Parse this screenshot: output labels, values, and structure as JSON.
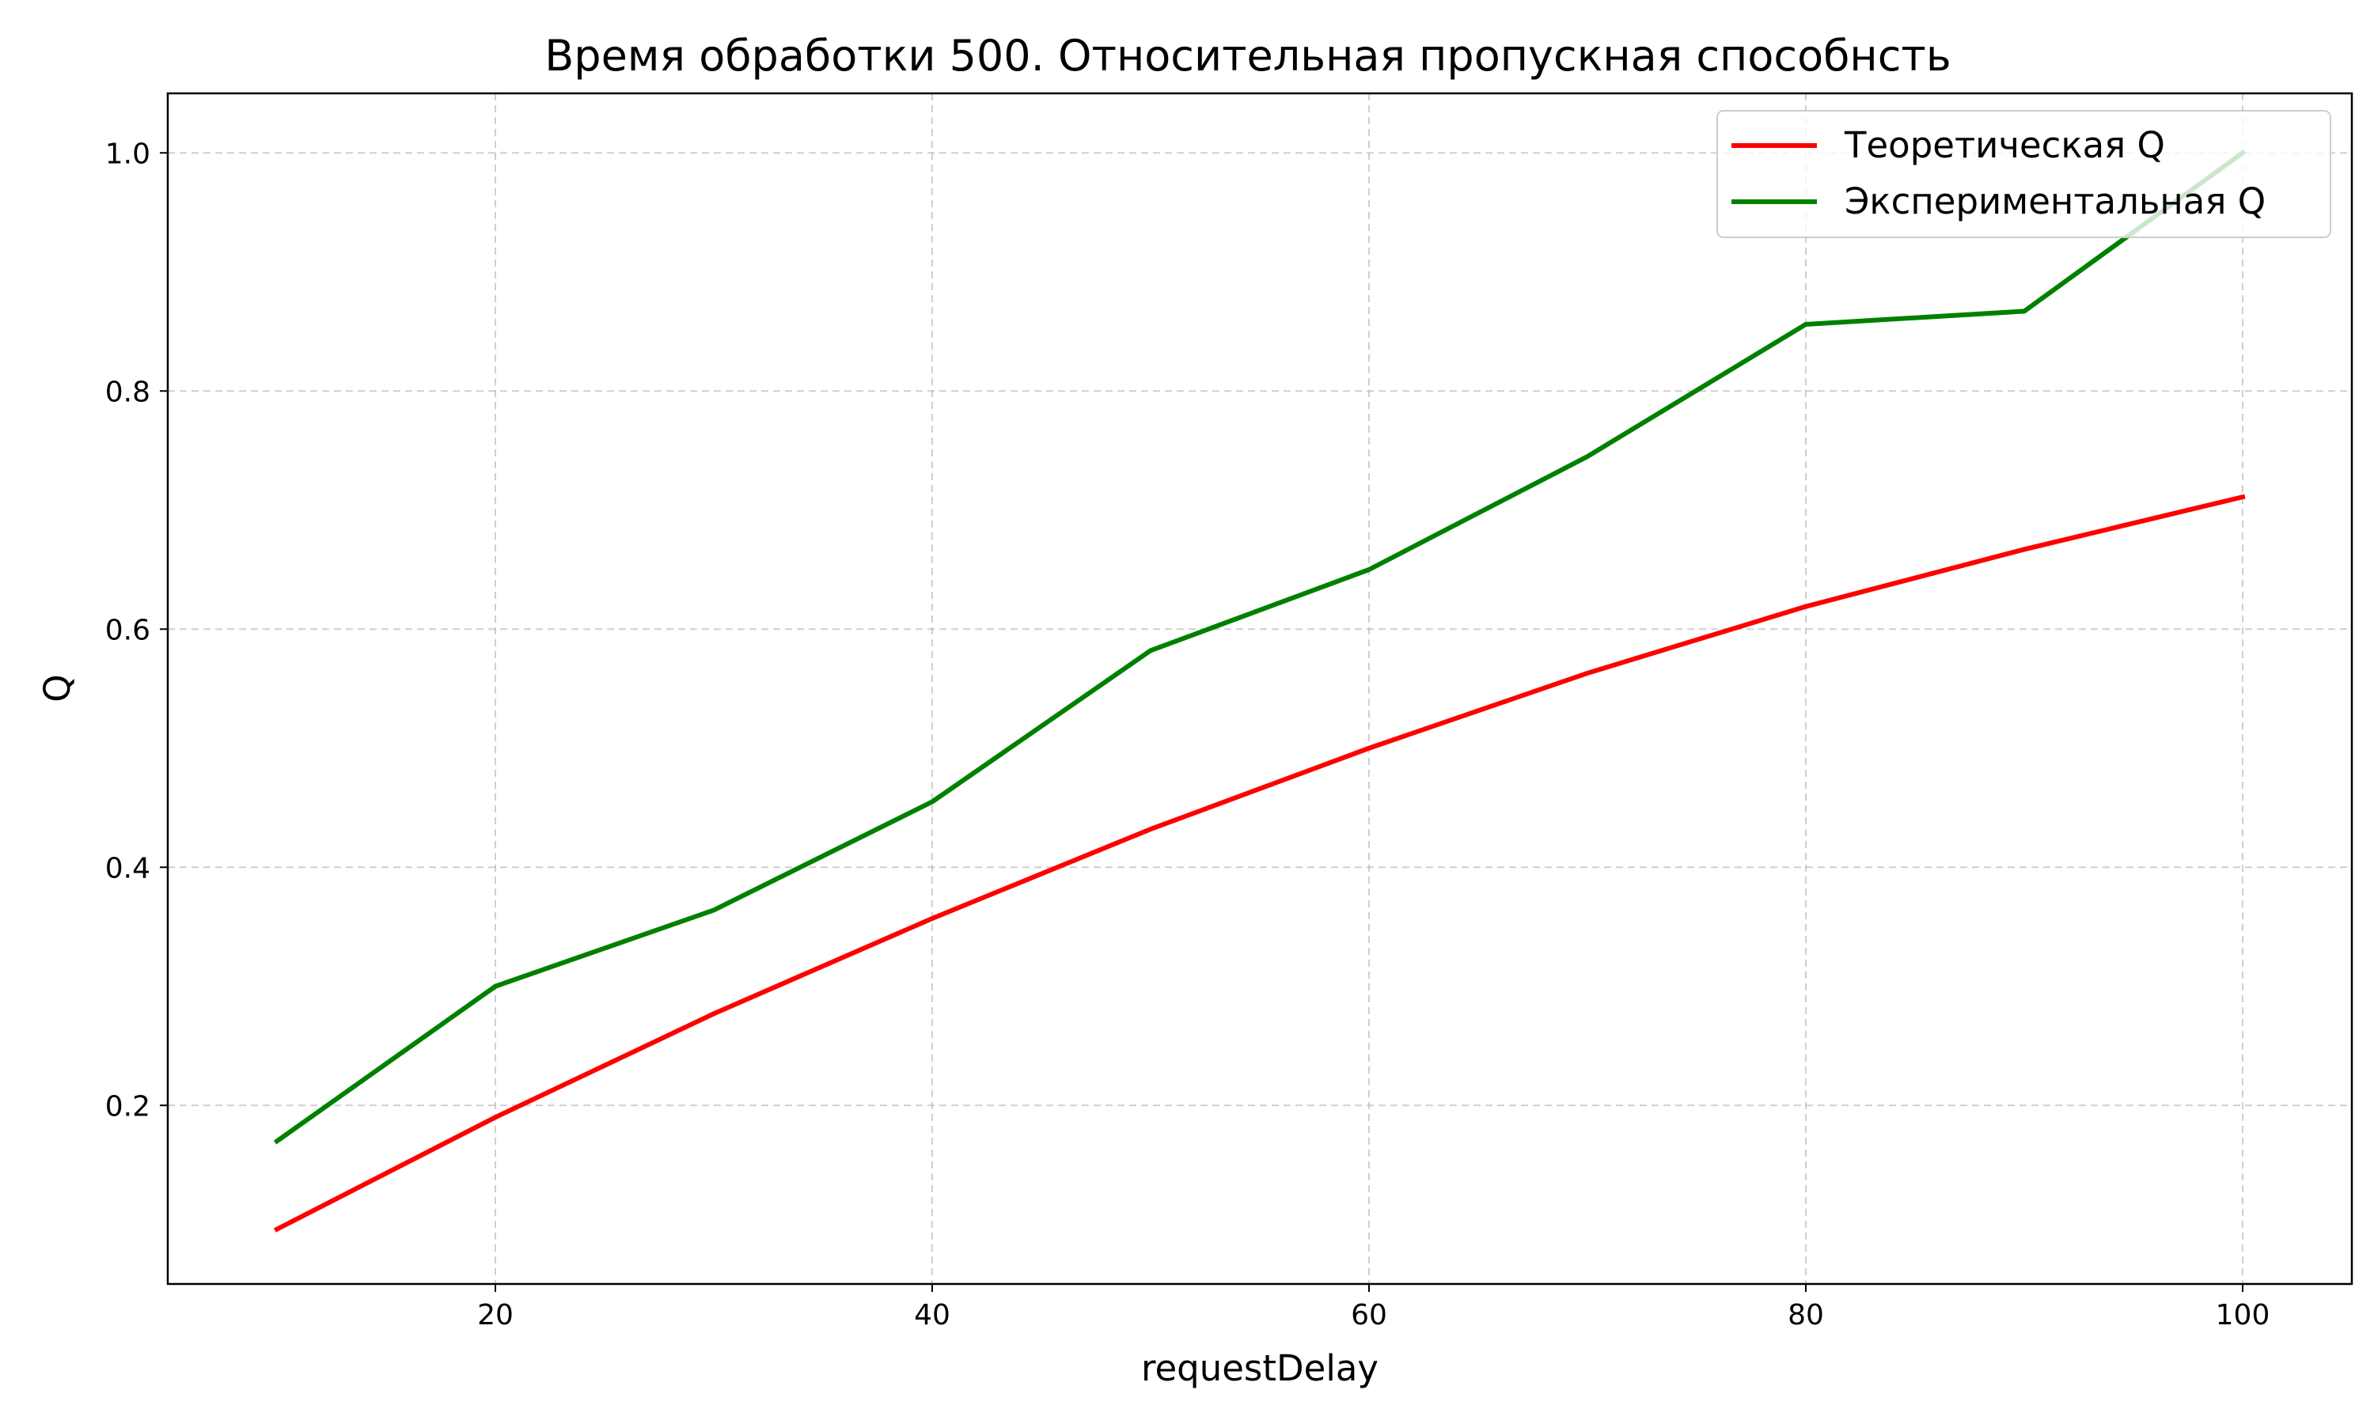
{
  "chart_data": {
    "type": "line",
    "title": "Время обработки 500. Относительная пропускная способнсть",
    "xlabel": "requestDelay",
    "ylabel": "Q",
    "xlim": [
      5,
      105
    ],
    "ylim": [
      0.05,
      1.05
    ],
    "x_ticks": [
      20,
      40,
      60,
      80,
      100
    ],
    "y_ticks": [
      0.2,
      0.4,
      0.6,
      0.8,
      1.0
    ],
    "grid": true,
    "legend_position": "top-right",
    "x": [
      10,
      20,
      30,
      40,
      50,
      60,
      70,
      80,
      90,
      100
    ],
    "series": [
      {
        "name": "Теоретическая Q",
        "color": "#ff0000",
        "values": [
          0.096,
          0.19,
          0.277,
          0.357,
          0.432,
          0.5,
          0.563,
          0.619,
          0.667,
          0.711
        ]
      },
      {
        "name": "Экспериментальная Q",
        "color": "#008000",
        "values": [
          0.17,
          0.3,
          0.364,
          0.455,
          0.582,
          0.65,
          0.745,
          0.856,
          0.867,
          1.0
        ]
      }
    ]
  }
}
